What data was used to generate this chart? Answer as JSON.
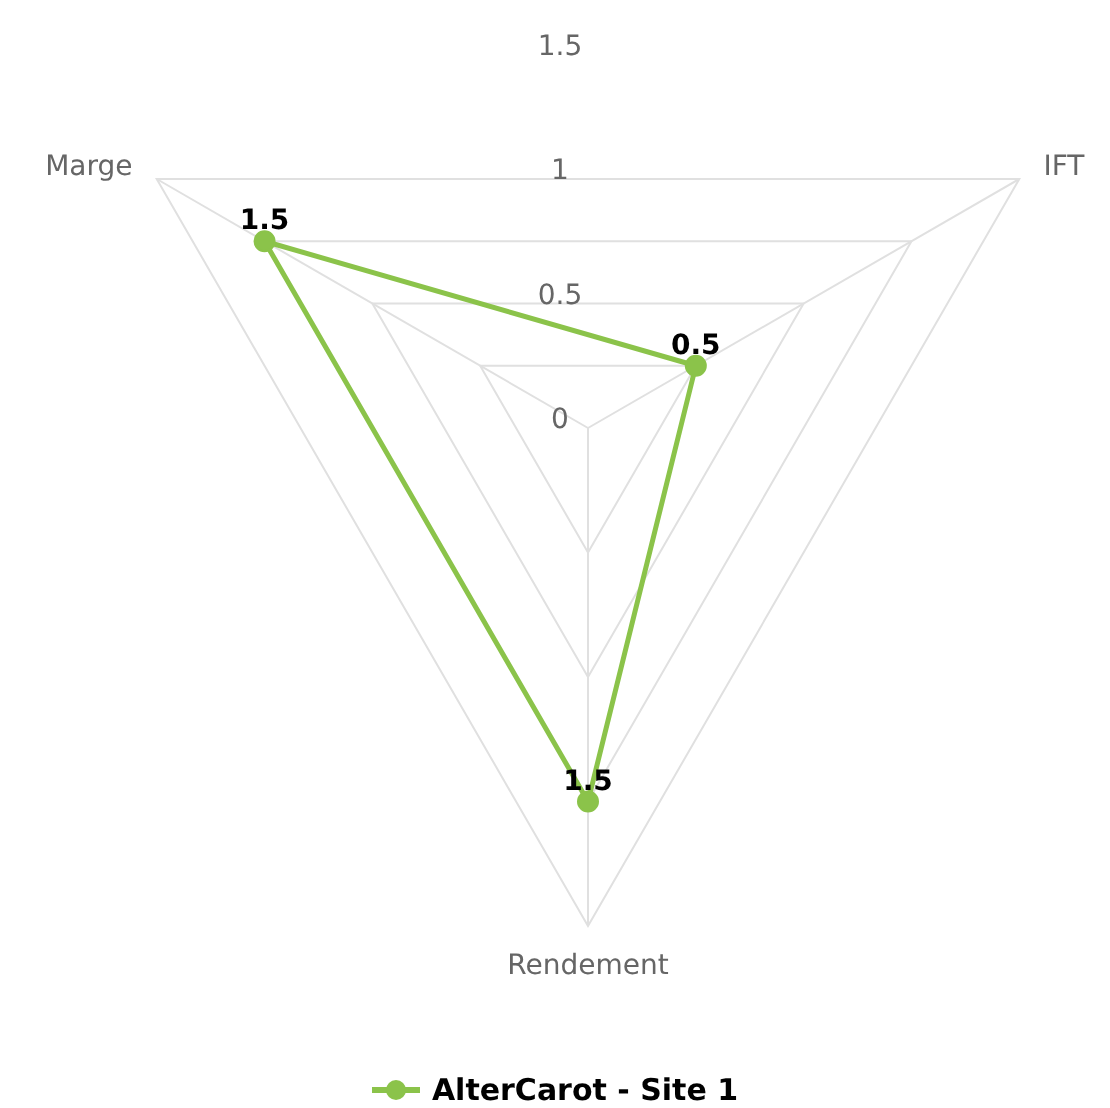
{
  "chart_data": {
    "type": "radar",
    "categories": [
      "Marge",
      "IFT",
      "Rendement"
    ],
    "series": [
      {
        "name": "AlterCarot - Site 1",
        "color": "#8bc34a",
        "values": [
          1.5,
          0.5,
          1.5
        ]
      }
    ],
    "ylim": [
      0,
      2
    ],
    "yticks": [
      0,
      0.5,
      1,
      1.5
    ],
    "grid": true,
    "legend": "bottom",
    "marker": "circle",
    "data_labels": true
  }
}
